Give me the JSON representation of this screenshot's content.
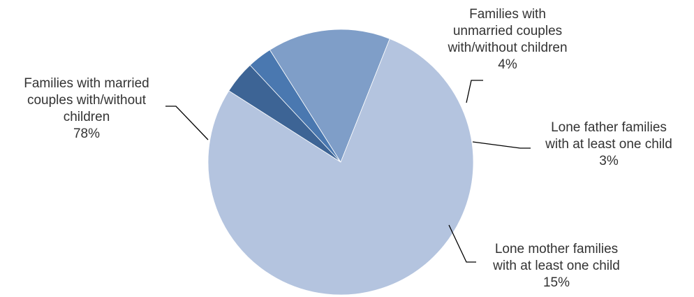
{
  "chart_data": {
    "type": "pie",
    "title": "",
    "colors": [
      "#3d6495",
      "#4a78b0",
      "#7f9ec8",
      "#b4c4df"
    ],
    "slices": [
      {
        "label_lines": [
          "Families with",
          "unmarried couples",
          "with/without children"
        ],
        "value": 4,
        "value_label": "4%"
      },
      {
        "label_lines": [
          "Lone father families",
          "with at least one child"
        ],
        "value": 3,
        "value_label": "3%"
      },
      {
        "label_lines": [
          "Lone mother families",
          "with at least one child"
        ],
        "value": 15,
        "value_label": "15%"
      },
      {
        "label_lines": [
          "Families with married",
          "couples with/without",
          "children"
        ],
        "value": 78,
        "value_label": "78%"
      }
    ],
    "legend": "none",
    "labels": "outside with leader lines"
  }
}
